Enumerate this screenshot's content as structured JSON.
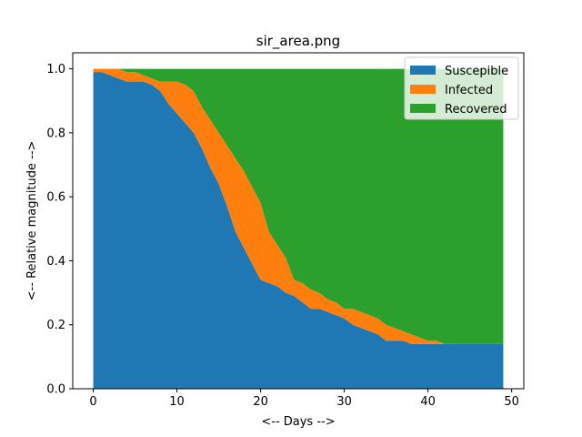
{
  "chart_data": {
    "type": "area",
    "stacked": true,
    "title": "sir_area.png",
    "xlabel": "<-- Days -->",
    "ylabel": "<-- Relative magnitude -->",
    "xlim": [
      -2.45,
      51.45
    ],
    "ylim": [
      0,
      1.05
    ],
    "xticks": [
      0,
      10,
      20,
      30,
      40,
      50
    ],
    "yticks": [
      0.0,
      0.2,
      0.4,
      0.6,
      0.8,
      1.0
    ],
    "xtick_labels": [
      "0",
      "10",
      "20",
      "30",
      "40",
      "50"
    ],
    "ytick_labels": [
      "0.0",
      "0.2",
      "0.4",
      "0.6",
      "0.8",
      "1.0"
    ],
    "legend": {
      "position": "top-right"
    },
    "x": [
      0,
      1,
      2,
      3,
      4,
      5,
      6,
      7,
      8,
      9,
      10,
      11,
      12,
      13,
      14,
      15,
      16,
      17,
      18,
      19,
      20,
      21,
      22,
      23,
      24,
      25,
      26,
      27,
      28,
      29,
      30,
      31,
      32,
      33,
      34,
      35,
      36,
      37,
      38,
      39,
      40,
      41,
      42,
      43,
      44,
      45,
      46,
      47,
      48,
      49
    ],
    "series": [
      {
        "name": "Suscepible",
        "color": "#1f77b4",
        "values": [
          0.99,
          0.99,
          0.98,
          0.97,
          0.96,
          0.96,
          0.96,
          0.95,
          0.93,
          0.89,
          0.86,
          0.83,
          0.8,
          0.75,
          0.69,
          0.64,
          0.57,
          0.49,
          0.44,
          0.39,
          0.34,
          0.33,
          0.32,
          0.3,
          0.29,
          0.27,
          0.25,
          0.25,
          0.24,
          0.23,
          0.22,
          0.2,
          0.19,
          0.18,
          0.17,
          0.15,
          0.15,
          0.15,
          0.14,
          0.14,
          0.14,
          0.14,
          0.14,
          0.14,
          0.14,
          0.14,
          0.14,
          0.14,
          0.14,
          0.14
        ]
      },
      {
        "name": "Infected",
        "color": "#ff7f0e",
        "values": [
          0.01,
          0.01,
          0.02,
          0.03,
          0.03,
          0.03,
          0.02,
          0.02,
          0.03,
          0.07,
          0.1,
          0.12,
          0.13,
          0.13,
          0.15,
          0.16,
          0.19,
          0.23,
          0.24,
          0.24,
          0.24,
          0.16,
          0.13,
          0.11,
          0.05,
          0.06,
          0.06,
          0.05,
          0.04,
          0.04,
          0.03,
          0.05,
          0.05,
          0.05,
          0.05,
          0.05,
          0.04,
          0.03,
          0.03,
          0.02,
          0.01,
          0.01,
          0.0,
          0.0,
          0.0,
          0.0,
          0.0,
          0.0,
          0.0,
          0.0
        ]
      },
      {
        "name": "Recovered",
        "color": "#2ca02c",
        "values": [
          0.0,
          0.0,
          0.0,
          0.0,
          0.01,
          0.01,
          0.02,
          0.03,
          0.04,
          0.04,
          0.04,
          0.05,
          0.07,
          0.12,
          0.16,
          0.2,
          0.24,
          0.28,
          0.32,
          0.37,
          0.42,
          0.51,
          0.55,
          0.59,
          0.66,
          0.67,
          0.69,
          0.7,
          0.72,
          0.73,
          0.75,
          0.75,
          0.76,
          0.77,
          0.78,
          0.8,
          0.81,
          0.82,
          0.83,
          0.84,
          0.85,
          0.85,
          0.86,
          0.86,
          0.86,
          0.86,
          0.86,
          0.86,
          0.86,
          0.86
        ]
      }
    ]
  }
}
